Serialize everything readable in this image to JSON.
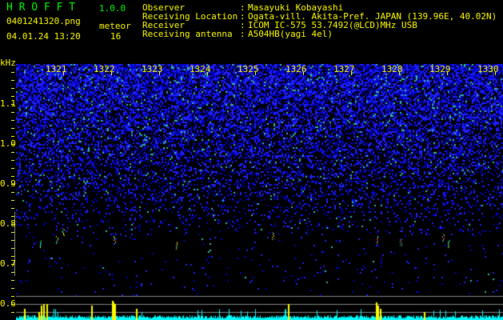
{
  "header": {
    "app_title": "H R O F F T",
    "version": "1.0.0",
    "filename": "0401241320.png",
    "datetime": "04.01.24 13:20",
    "meteor_label": "meteor",
    "meteor_count": "16"
  },
  "info": [
    {
      "label": "Observer",
      "value": "Masayuki Kobayashi"
    },
    {
      "label": "Receiving Location",
      "value": "Ogata-vill. Akita-Pref. JAPAN (139.96E, 40.02N)"
    },
    {
      "label": "Receiver",
      "value": "ICOM IC-575 53.7492(@LCD)MHz USB"
    },
    {
      "label": "Receiving antenna",
      "value": "A504HB(yagi 4el)"
    }
  ],
  "spectrogram": {
    "y_unit": "kHz",
    "y_labels": [
      "1.1",
      "1.0",
      "0.9",
      "0.8",
      "0.7",
      "0.6"
    ],
    "x_labels": [
      "1321",
      "1322",
      "1323",
      "1324",
      "1325",
      "1326",
      "1327",
      "1328",
      "1329",
      "1330"
    ],
    "colors": {
      "noise": "#0000ff",
      "text": "#ffff00",
      "level": "#00ffff",
      "spike": "#ffff00"
    }
  }
}
